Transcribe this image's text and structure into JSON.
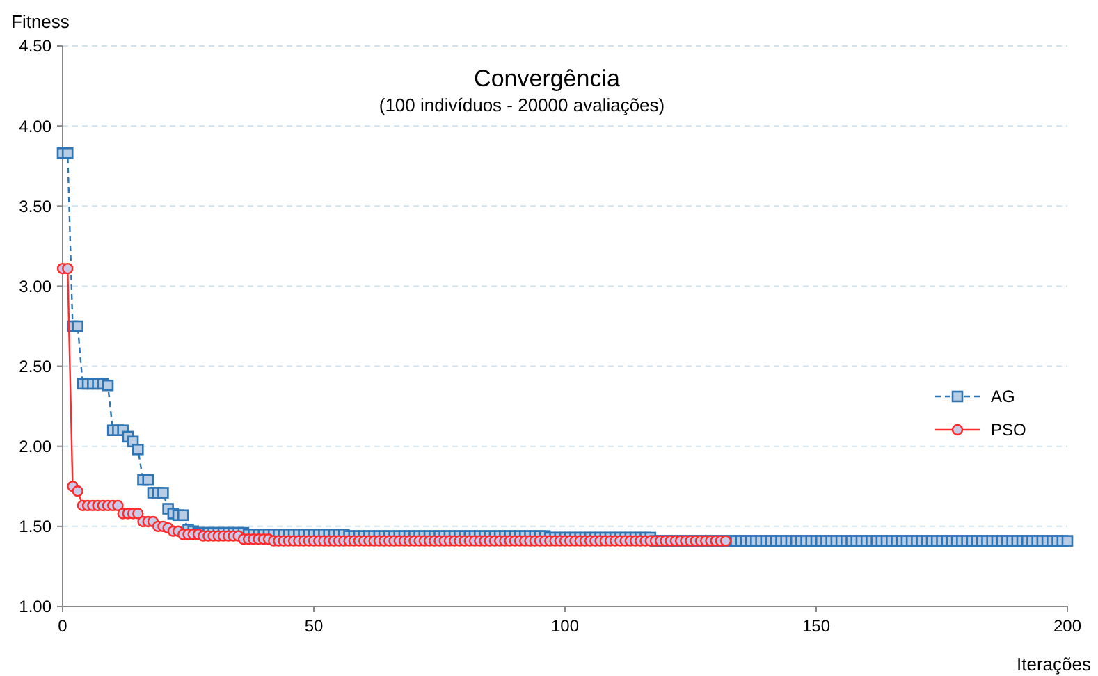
{
  "chart_data": {
    "type": "line",
    "title": "Convergência",
    "subtitle": "(100 indivíduos - 20000  avaliações)",
    "xlabel": "Iterações",
    "ylabel": "Fitness",
    "x": [
      0,
      1,
      2,
      3,
      4,
      5,
      6,
      7,
      8,
      9,
      10,
      11,
      12,
      13,
      14,
      15,
      16,
      17,
      18,
      19,
      20,
      21,
      22,
      23,
      24,
      25,
      26,
      27,
      28,
      29,
      30,
      31,
      32,
      33,
      34,
      35,
      36,
      37,
      38,
      39,
      40,
      41,
      42,
      43,
      44,
      45,
      46,
      47,
      48,
      49,
      50,
      51,
      52,
      53,
      54,
      55,
      56,
      57,
      58,
      59,
      60,
      61,
      62,
      63,
      64,
      65,
      66,
      67,
      68,
      69,
      70,
      71,
      72,
      73,
      74,
      75,
      76,
      77,
      78,
      79,
      80,
      81,
      82,
      83,
      84,
      85,
      86,
      87,
      88,
      89,
      90,
      91,
      92,
      93,
      94,
      95,
      96,
      97,
      98,
      99,
      100,
      101,
      102,
      103,
      104,
      105,
      106,
      107,
      108,
      109,
      110,
      111,
      112,
      113,
      114,
      115,
      116,
      117,
      118,
      119,
      120,
      121,
      122,
      123,
      124,
      125,
      126,
      127,
      128,
      129,
      130,
      131,
      132,
      133,
      134,
      135,
      136,
      137,
      138,
      139,
      140,
      141,
      142,
      143,
      144,
      145,
      146,
      147,
      148,
      149,
      150,
      151,
      152,
      153,
      154,
      155,
      156,
      157,
      158,
      159,
      160,
      161,
      162,
      163,
      164,
      165,
      166,
      167,
      168,
      169,
      170,
      171,
      172,
      173,
      174,
      175,
      176,
      177,
      178,
      179,
      180,
      181,
      182,
      183,
      184,
      185,
      186,
      187,
      188,
      189,
      190,
      191,
      192,
      193,
      194,
      195,
      196,
      197,
      198,
      199,
      200
    ],
    "series": [
      {
        "name": "AG",
        "color": "#2e75b6",
        "marker": "square",
        "line_style": "dashed",
        "values": [
          3.83,
          3.83,
          2.75,
          2.75,
          2.39,
          2.39,
          2.39,
          2.39,
          2.39,
          2.38,
          2.1,
          2.1,
          2.1,
          2.06,
          2.03,
          1.98,
          1.79,
          1.79,
          1.71,
          1.71,
          1.71,
          1.61,
          1.58,
          1.57,
          1.57,
          1.48,
          1.47,
          1.46,
          1.46,
          1.46,
          1.46,
          1.46,
          1.46,
          1.46,
          1.46,
          1.46,
          1.46,
          1.45,
          1.45,
          1.45,
          1.45,
          1.45,
          1.45,
          1.45,
          1.45,
          1.45,
          1.45,
          1.45,
          1.45,
          1.45,
          1.45,
          1.45,
          1.45,
          1.45,
          1.45,
          1.45,
          1.45,
          1.44,
          1.44,
          1.44,
          1.44,
          1.44,
          1.44,
          1.44,
          1.44,
          1.44,
          1.44,
          1.44,
          1.44,
          1.44,
          1.44,
          1.44,
          1.44,
          1.44,
          1.44,
          1.44,
          1.44,
          1.44,
          1.44,
          1.44,
          1.44,
          1.44,
          1.44,
          1.44,
          1.44,
          1.44,
          1.44,
          1.44,
          1.44,
          1.44,
          1.44,
          1.44,
          1.44,
          1.44,
          1.44,
          1.44,
          1.44,
          1.43,
          1.43,
          1.43,
          1.43,
          1.43,
          1.43,
          1.43,
          1.43,
          1.43,
          1.43,
          1.43,
          1.43,
          1.43,
          1.43,
          1.43,
          1.43,
          1.43,
          1.43,
          1.43,
          1.43,
          1.43,
          1.41,
          1.41,
          1.41,
          1.41,
          1.41,
          1.41,
          1.41,
          1.41,
          1.41,
          1.41,
          1.41,
          1.41,
          1.41,
          1.41,
          1.41,
          1.41,
          1.41,
          1.41,
          1.41,
          1.41,
          1.41,
          1.41,
          1.41,
          1.41,
          1.41,
          1.41,
          1.41,
          1.41,
          1.41,
          1.41,
          1.41,
          1.41,
          1.41,
          1.41,
          1.41,
          1.41,
          1.41,
          1.41,
          1.41,
          1.41,
          1.41,
          1.41,
          1.41,
          1.41,
          1.41,
          1.41,
          1.41,
          1.41,
          1.41,
          1.41,
          1.41,
          1.41,
          1.41,
          1.41,
          1.41,
          1.41,
          1.41,
          1.41,
          1.41,
          1.41,
          1.41,
          1.41,
          1.41,
          1.41,
          1.41,
          1.41,
          1.41,
          1.41,
          1.41,
          1.41,
          1.41,
          1.41,
          1.41,
          1.41,
          1.41,
          1.41,
          1.41,
          1.41,
          1.41,
          1.41,
          1.41,
          1.41,
          1.41
        ]
      },
      {
        "name": "PSO",
        "color": "#ff2a2a",
        "marker": "circle",
        "line_style": "solid",
        "x": [
          0,
          1,
          2,
          3,
          4,
          5,
          6,
          7,
          8,
          9,
          10,
          11,
          12,
          13,
          14,
          15,
          16,
          17,
          18,
          19,
          20,
          21,
          22,
          23,
          24,
          25,
          26,
          27,
          28,
          29,
          30,
          31,
          32,
          33,
          34,
          35,
          36,
          37,
          38,
          39,
          40,
          41,
          42,
          43,
          44,
          45,
          46,
          47,
          48,
          49,
          50,
          51,
          52,
          53,
          54,
          55,
          56,
          57,
          58,
          59,
          60,
          61,
          62,
          63,
          64,
          65,
          66,
          67,
          68,
          69,
          70,
          71,
          72,
          73,
          74,
          75,
          76,
          77,
          78,
          79,
          80,
          81,
          82,
          83,
          84,
          85,
          86,
          87,
          88,
          89,
          90,
          91,
          92,
          93,
          94,
          95,
          96,
          97,
          98,
          99,
          100,
          101,
          102,
          103,
          104,
          105,
          106,
          107,
          108,
          109,
          110,
          111,
          112,
          113,
          114,
          115,
          116,
          117,
          118,
          119,
          120,
          121,
          122,
          123,
          124,
          125,
          126,
          127,
          128,
          129,
          130,
          131,
          132
        ],
        "values": [
          3.11,
          3.11,
          1.75,
          1.72,
          1.63,
          1.63,
          1.63,
          1.63,
          1.63,
          1.63,
          1.63,
          1.63,
          1.58,
          1.58,
          1.58,
          1.58,
          1.53,
          1.53,
          1.53,
          1.5,
          1.5,
          1.49,
          1.47,
          1.47,
          1.45,
          1.45,
          1.45,
          1.45,
          1.44,
          1.44,
          1.44,
          1.44,
          1.44,
          1.44,
          1.44,
          1.44,
          1.42,
          1.42,
          1.42,
          1.42,
          1.42,
          1.42,
          1.41,
          1.41,
          1.41,
          1.41,
          1.41,
          1.41,
          1.41,
          1.41,
          1.41,
          1.41,
          1.41,
          1.41,
          1.41,
          1.41,
          1.41,
          1.41,
          1.41,
          1.41,
          1.41,
          1.41,
          1.41,
          1.41,
          1.41,
          1.41,
          1.41,
          1.41,
          1.41,
          1.41,
          1.41,
          1.41,
          1.41,
          1.41,
          1.41,
          1.41,
          1.41,
          1.41,
          1.41,
          1.41,
          1.41,
          1.41,
          1.41,
          1.41,
          1.41,
          1.41,
          1.41,
          1.41,
          1.41,
          1.41,
          1.41,
          1.41,
          1.41,
          1.41,
          1.41,
          1.41,
          1.41,
          1.41,
          1.41,
          1.41,
          1.41,
          1.41,
          1.41,
          1.41,
          1.41,
          1.41,
          1.41,
          1.41,
          1.41,
          1.41,
          1.41,
          1.41,
          1.41,
          1.41,
          1.41,
          1.41,
          1.41,
          1.41,
          1.41,
          1.41,
          1.41,
          1.41,
          1.41,
          1.41,
          1.41,
          1.41,
          1.41,
          1.41,
          1.41,
          1.41,
          1.41,
          1.41,
          1.41
        ]
      }
    ],
    "xlim": [
      0,
      200
    ],
    "xticks": [
      0,
      50,
      100,
      150,
      200
    ],
    "ylim": [
      1,
      4.5
    ],
    "yticks": [
      {
        "value": 1,
        "label": "1.00"
      },
      {
        "value": 1.5,
        "label": "1.50"
      },
      {
        "value": 2,
        "label": "2.00"
      },
      {
        "value": 2.5,
        "label": "2.50"
      },
      {
        "value": 3,
        "label": "3.00"
      },
      {
        "value": 3.5,
        "label": "3.50"
      },
      {
        "value": 4,
        "label": "4.00"
      },
      {
        "value": 4.5,
        "label": "4.50"
      }
    ],
    "grid": "y",
    "legend": "right"
  }
}
